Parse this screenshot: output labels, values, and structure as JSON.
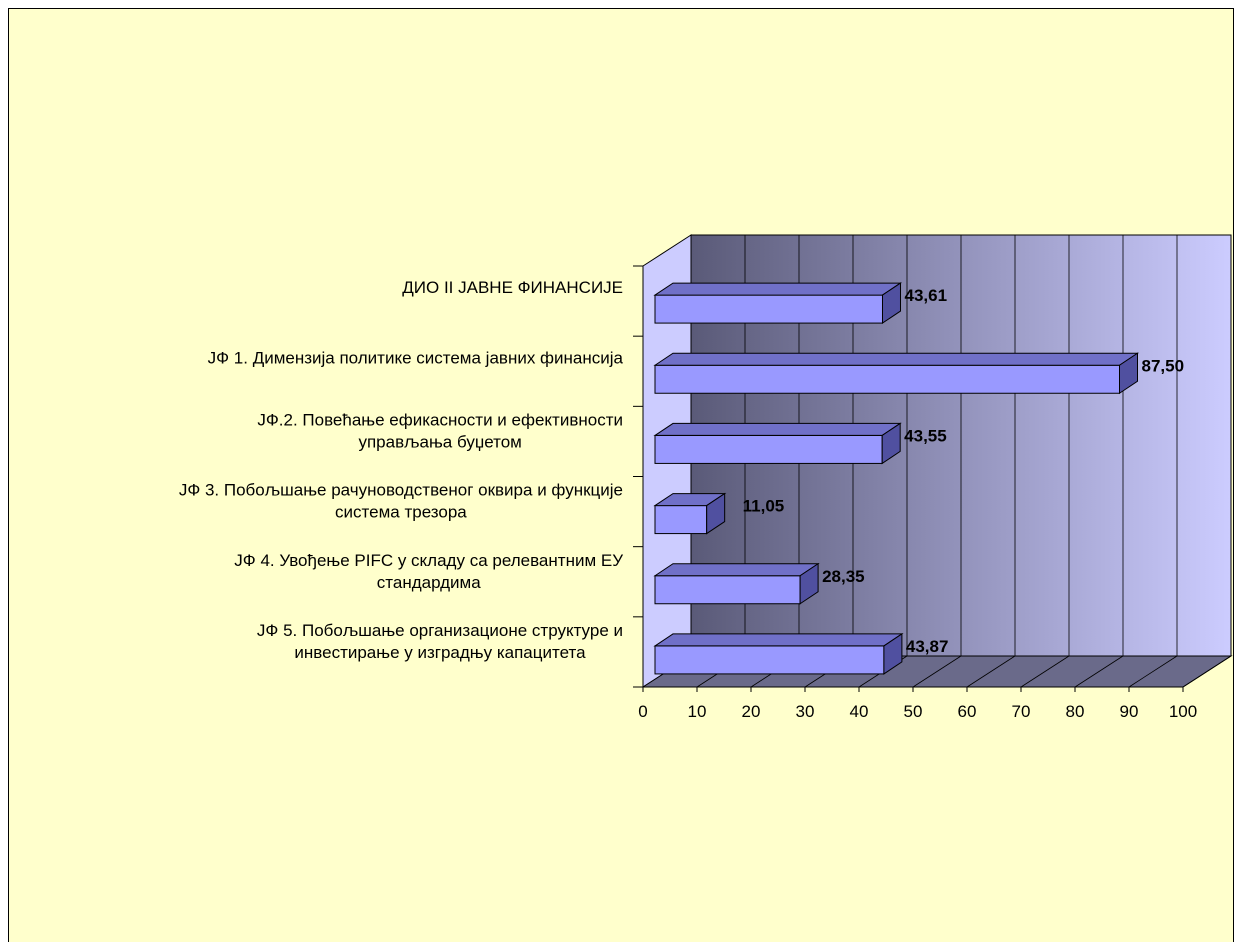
{
  "chart_data": {
    "type": "bar",
    "orientation": "horizontal",
    "style": "3d",
    "categories": [
      [
        "ДИО II ЈАВНЕ ФИНАНСИЈЕ"
      ],
      [
        "ЈФ 1. Димензија политике система јавних финансија"
      ],
      [
        "ЈФ.2. Повећање ефикасности и ефективности",
        "управљања буџетом"
      ],
      [
        "ЈФ 3. Побољшање рачуноводственог оквира и функције",
        "система трезора"
      ],
      [
        "ЈФ 4. Увођење PIFC у складу са релевантним ЕУ",
        "стандардима"
      ],
      [
        "ЈФ 5. Побољшање организационе структуре и",
        "инвестирање у изградњу капацитета"
      ]
    ],
    "values": [
      43.61,
      87.5,
      43.55,
      11.05,
      28.35,
      43.87
    ],
    "value_labels": [
      "43,61",
      "87,50",
      "43,55",
      "11,05",
      "28,35",
      "43,87"
    ],
    "xlim": [
      0,
      100
    ],
    "xticks": [
      "0",
      "10",
      "20",
      "30",
      "40",
      "50",
      "60",
      "70",
      "80",
      "90",
      "100"
    ],
    "grid": true,
    "colors": {
      "background": "#ffffcc",
      "bar_front": "#9999ff",
      "bar_top": "#7070c8",
      "bar_side": "#5050a0",
      "wall_dark": "#5a5a78",
      "wall_light": "#ccccff",
      "left_wall": "#ccccff",
      "floor": "#6a6a8a"
    }
  }
}
